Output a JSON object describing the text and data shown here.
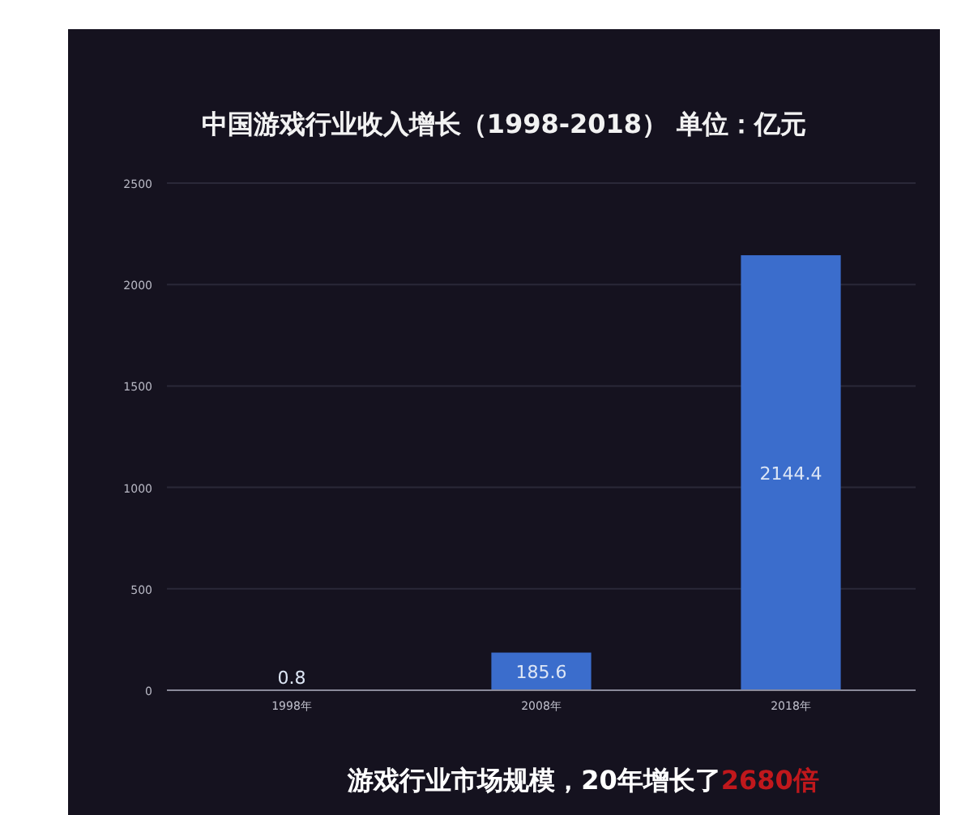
{
  "chart_data": {
    "type": "bar",
    "title": "中国游戏行业收入增长（1998-2018） 单位：亿元",
    "categories": [
      "1998年",
      "2008年",
      "2018年"
    ],
    "values": [
      0.8,
      185.6,
      2144.4
    ],
    "color": "#3b6dcc",
    "ylim": [
      0,
      2500
    ],
    "yticks": [
      0,
      500,
      1000,
      1500,
      2000,
      2500
    ],
    "grid": "y",
    "data_labels": true,
    "annotations": [
      "游戏行业市场规模，20年增长了",
      "2680倍"
    ]
  }
}
